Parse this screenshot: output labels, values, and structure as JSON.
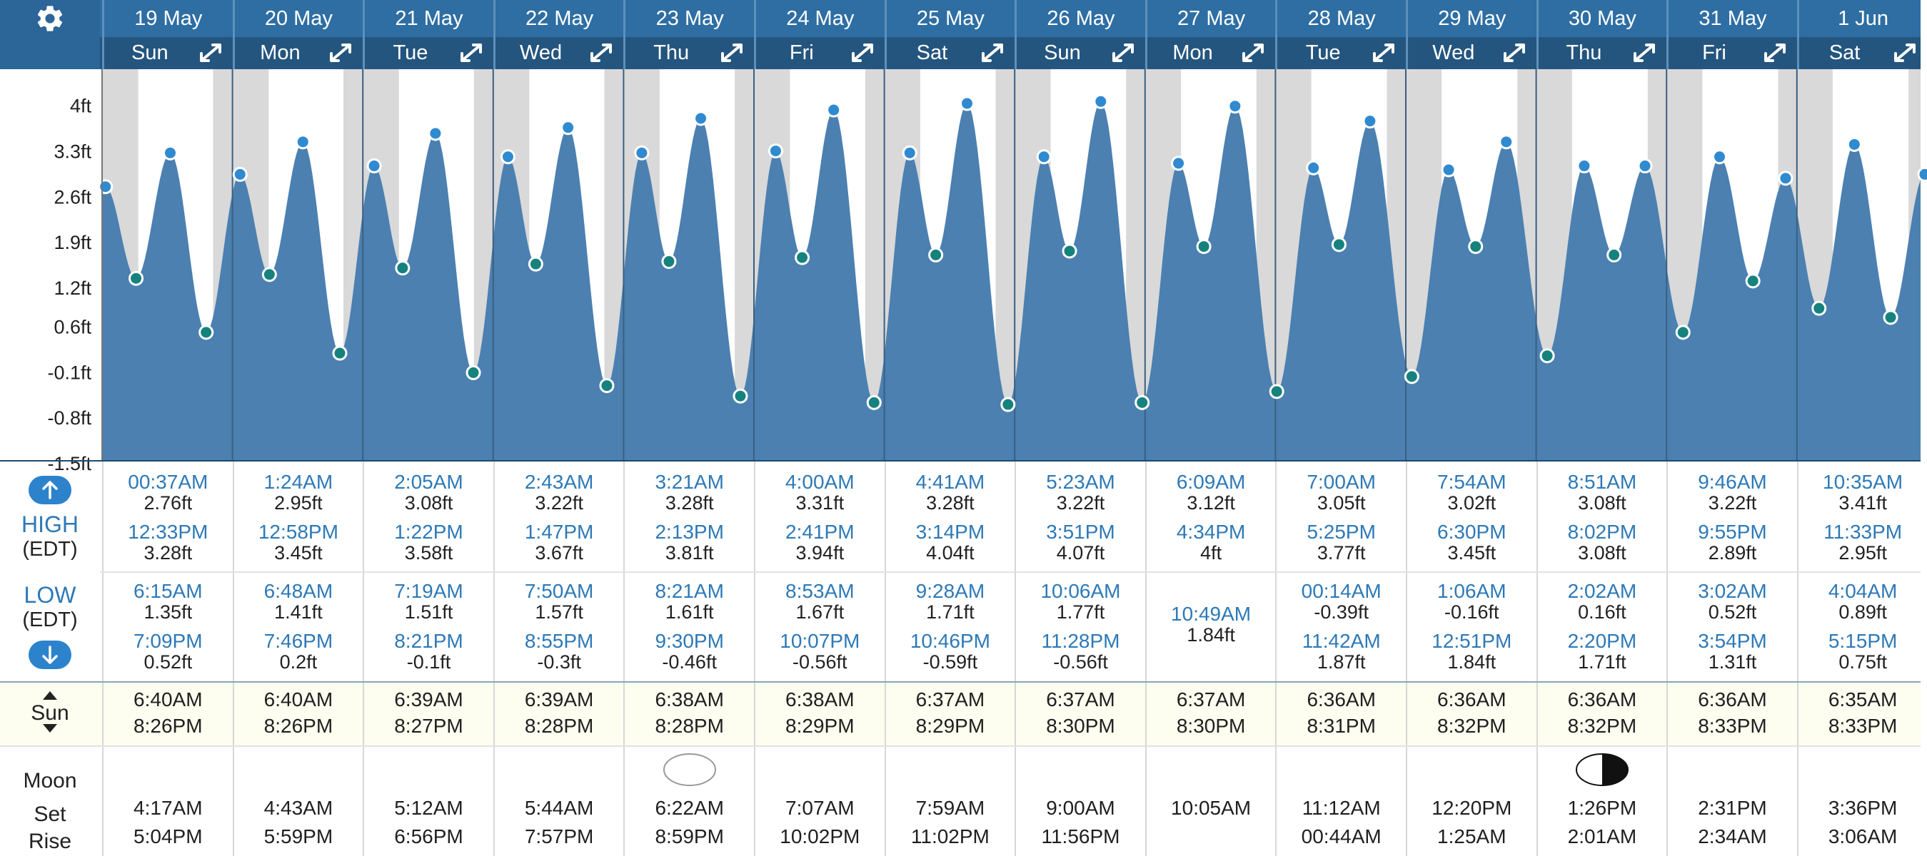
{
  "settings_icon": "gear-icon",
  "expand_icon": "expand-arrows-icon",
  "days": [
    {
      "date": "19 May",
      "weekday": "Sun",
      "high": [
        {
          "time": "00:37AM",
          "height": "2.76ft"
        },
        {
          "time": "12:33PM",
          "height": "3.28ft"
        }
      ],
      "low": [
        {
          "time": "6:15AM",
          "height": "1.35ft"
        },
        {
          "time": "7:09PM",
          "height": "0.52ft"
        }
      ],
      "sunrise": "6:40AM",
      "sunset": "8:26PM",
      "moonset": "4:17AM",
      "moonrise": "5:04PM",
      "moon_phase": ""
    },
    {
      "date": "20 May",
      "weekday": "Mon",
      "high": [
        {
          "time": "1:24AM",
          "height": "2.95ft"
        },
        {
          "time": "12:58PM",
          "height": "3.45ft"
        }
      ],
      "low": [
        {
          "time": "6:48AM",
          "height": "1.41ft"
        },
        {
          "time": "7:46PM",
          "height": "0.2ft"
        }
      ],
      "sunrise": "6:40AM",
      "sunset": "8:26PM",
      "moonset": "4:43AM",
      "moonrise": "5:59PM",
      "moon_phase": ""
    },
    {
      "date": "21 May",
      "weekday": "Tue",
      "high": [
        {
          "time": "2:05AM",
          "height": "3.08ft"
        },
        {
          "time": "1:22PM",
          "height": "3.58ft"
        }
      ],
      "low": [
        {
          "time": "7:19AM",
          "height": "1.51ft"
        },
        {
          "time": "8:21PM",
          "height": "-0.1ft"
        }
      ],
      "sunrise": "6:39AM",
      "sunset": "8:27PM",
      "moonset": "5:12AM",
      "moonrise": "6:56PM",
      "moon_phase": ""
    },
    {
      "date": "22 May",
      "weekday": "Wed",
      "high": [
        {
          "time": "2:43AM",
          "height": "3.22ft"
        },
        {
          "time": "1:47PM",
          "height": "3.67ft"
        }
      ],
      "low": [
        {
          "time": "7:50AM",
          "height": "1.57ft"
        },
        {
          "time": "8:55PM",
          "height": "-0.3ft"
        }
      ],
      "sunrise": "6:39AM",
      "sunset": "8:28PM",
      "moonset": "5:44AM",
      "moonrise": "7:57PM",
      "moon_phase": ""
    },
    {
      "date": "23 May",
      "weekday": "Thu",
      "high": [
        {
          "time": "3:21AM",
          "height": "3.28ft"
        },
        {
          "time": "2:13PM",
          "height": "3.81ft"
        }
      ],
      "low": [
        {
          "time": "8:21AM",
          "height": "1.61ft"
        },
        {
          "time": "9:30PM",
          "height": "-0.46ft"
        }
      ],
      "sunrise": "6:38AM",
      "sunset": "8:28PM",
      "moonset": "6:22AM",
      "moonrise": "8:59PM",
      "moon_phase": "full"
    },
    {
      "date": "24 May",
      "weekday": "Fri",
      "high": [
        {
          "time": "4:00AM",
          "height": "3.31ft"
        },
        {
          "time": "2:41PM",
          "height": "3.94ft"
        }
      ],
      "low": [
        {
          "time": "8:53AM",
          "height": "1.67ft"
        },
        {
          "time": "10:07PM",
          "height": "-0.56ft"
        }
      ],
      "sunrise": "6:38AM",
      "sunset": "8:29PM",
      "moonset": "7:07AM",
      "moonrise": "10:02PM",
      "moon_phase": ""
    },
    {
      "date": "25 May",
      "weekday": "Sat",
      "high": [
        {
          "time": "4:41AM",
          "height": "3.28ft"
        },
        {
          "time": "3:14PM",
          "height": "4.04ft"
        }
      ],
      "low": [
        {
          "time": "9:28AM",
          "height": "1.71ft"
        },
        {
          "time": "10:46PM",
          "height": "-0.59ft"
        }
      ],
      "sunrise": "6:37AM",
      "sunset": "8:29PM",
      "moonset": "7:59AM",
      "moonrise": "11:02PM",
      "moon_phase": ""
    },
    {
      "date": "26 May",
      "weekday": "Sun",
      "high": [
        {
          "time": "5:23AM",
          "height": "3.22ft"
        },
        {
          "time": "3:51PM",
          "height": "4.07ft"
        }
      ],
      "low": [
        {
          "time": "10:06AM",
          "height": "1.77ft"
        },
        {
          "time": "11:28PM",
          "height": "-0.56ft"
        }
      ],
      "sunrise": "6:37AM",
      "sunset": "8:30PM",
      "moonset": "9:00AM",
      "moonrise": "11:56PM",
      "moon_phase": ""
    },
    {
      "date": "27 May",
      "weekday": "Mon",
      "high": [
        {
          "time": "6:09AM",
          "height": "3.12ft"
        },
        {
          "time": "4:34PM",
          "height": "4ft"
        }
      ],
      "low": [
        {
          "time": "10:49AM",
          "height": "1.84ft"
        }
      ],
      "sunrise": "6:37AM",
      "sunset": "8:30PM",
      "moonset": "10:05AM",
      "moonrise": "",
      "moon_phase": ""
    },
    {
      "date": "28 May",
      "weekday": "Tue",
      "high": [
        {
          "time": "7:00AM",
          "height": "3.05ft"
        },
        {
          "time": "5:25PM",
          "height": "3.77ft"
        }
      ],
      "low": [
        {
          "time": "00:14AM",
          "height": "-0.39ft"
        },
        {
          "time": "11:42AM",
          "height": "1.87ft"
        }
      ],
      "sunrise": "6:36AM",
      "sunset": "8:31PM",
      "moonset": "11:12AM",
      "moonrise": "00:44AM",
      "moon_phase": ""
    },
    {
      "date": "29 May",
      "weekday": "Wed",
      "high": [
        {
          "time": "7:54AM",
          "height": "3.02ft"
        },
        {
          "time": "6:30PM",
          "height": "3.45ft"
        }
      ],
      "low": [
        {
          "time": "1:06AM",
          "height": "-0.16ft"
        },
        {
          "time": "12:51PM",
          "height": "1.84ft"
        }
      ],
      "sunrise": "6:36AM",
      "sunset": "8:32PM",
      "moonset": "12:20PM",
      "moonrise": "1:25AM",
      "moon_phase": ""
    },
    {
      "date": "30 May",
      "weekday": "Thu",
      "high": [
        {
          "time": "8:51AM",
          "height": "3.08ft"
        },
        {
          "time": "8:02PM",
          "height": "3.08ft"
        }
      ],
      "low": [
        {
          "time": "2:02AM",
          "height": "0.16ft"
        },
        {
          "time": "2:20PM",
          "height": "1.71ft"
        }
      ],
      "sunrise": "6:36AM",
      "sunset": "8:32PM",
      "moonset": "1:26PM",
      "moonrise": "2:01AM",
      "moon_phase": "last-quarter"
    },
    {
      "date": "31 May",
      "weekday": "Fri",
      "high": [
        {
          "time": "9:46AM",
          "height": "3.22ft"
        },
        {
          "time": "9:55PM",
          "height": "2.89ft"
        }
      ],
      "low": [
        {
          "time": "3:02AM",
          "height": "0.52ft"
        },
        {
          "time": "3:54PM",
          "height": "1.31ft"
        }
      ],
      "sunrise": "6:36AM",
      "sunset": "8:33PM",
      "moonset": "2:31PM",
      "moonrise": "2:34AM",
      "moon_phase": ""
    },
    {
      "date": "1 Jun",
      "weekday": "Sat",
      "high": [
        {
          "time": "10:35AM",
          "height": "3.41ft"
        },
        {
          "time": "11:33PM",
          "height": "2.95ft"
        }
      ],
      "low": [
        {
          "time": "4:04AM",
          "height": "0.89ft"
        },
        {
          "time": "5:15PM",
          "height": "0.75ft"
        }
      ],
      "sunrise": "6:35AM",
      "sunset": "8:33PM",
      "moonset": "3:36PM",
      "moonrise": "3:06AM",
      "moon_phase": ""
    }
  ],
  "labels": {
    "high": "HIGH",
    "high_tz": "(EDT)",
    "low": "LOW",
    "low_tz": "(EDT)",
    "sun": "Sun",
    "moon": "Moon",
    "set": "Set",
    "rise": "Rise"
  },
  "chart_data": {
    "type": "area",
    "y_unit": "ft",
    "yticks": [
      "4ft",
      "3.3ft",
      "2.6ft",
      "1.9ft",
      "1.2ft",
      "0.6ft",
      "-0.1ft",
      "-0.8ft",
      "-1.5ft"
    ],
    "ytick_values": [
      4,
      3.3,
      2.6,
      1.9,
      1.2,
      0.6,
      -0.1,
      -0.8,
      -1.5
    ],
    "ylim": [
      -1.5,
      4.6
    ],
    "x_start": "19 May 00:00",
    "x_end": "1 Jun 24:00",
    "night_shading": true,
    "colors": {
      "area": "#4b80b1",
      "night": "#d9d9d9",
      "high_marker": "#2f8ad0",
      "low_marker": "#16827e"
    },
    "series": [
      {
        "x": "18 May 11:50PM",
        "y": 2.6
      },
      {
        "x": "19 May 00:37AM",
        "y": 2.76,
        "kind": "high"
      },
      {
        "x": "19 May 6:15AM",
        "y": 1.35,
        "kind": "low"
      },
      {
        "x": "19 May 12:33PM",
        "y": 3.28,
        "kind": "high"
      },
      {
        "x": "19 May 7:09PM",
        "y": 0.52,
        "kind": "low"
      },
      {
        "x": "20 May 1:24AM",
        "y": 2.95,
        "kind": "high"
      },
      {
        "x": "20 May 6:48AM",
        "y": 1.41,
        "kind": "low"
      },
      {
        "x": "20 May 12:58PM",
        "y": 3.45,
        "kind": "high"
      },
      {
        "x": "20 May 7:46PM",
        "y": 0.2,
        "kind": "low"
      },
      {
        "x": "21 May 2:05AM",
        "y": 3.08,
        "kind": "high"
      },
      {
        "x": "21 May 7:19AM",
        "y": 1.51,
        "kind": "low"
      },
      {
        "x": "21 May 1:22PM",
        "y": 3.58,
        "kind": "high"
      },
      {
        "x": "21 May 8:21PM",
        "y": -0.1,
        "kind": "low"
      },
      {
        "x": "22 May 2:43AM",
        "y": 3.22,
        "kind": "high"
      },
      {
        "x": "22 May 7:50AM",
        "y": 1.57,
        "kind": "low"
      },
      {
        "x": "22 May 1:47PM",
        "y": 3.67,
        "kind": "high"
      },
      {
        "x": "22 May 8:55PM",
        "y": -0.3,
        "kind": "low"
      },
      {
        "x": "23 May 3:21AM",
        "y": 3.28,
        "kind": "high"
      },
      {
        "x": "23 May 8:21AM",
        "y": 1.61,
        "kind": "low"
      },
      {
        "x": "23 May 2:13PM",
        "y": 3.81,
        "kind": "high"
      },
      {
        "x": "23 May 9:30PM",
        "y": -0.46,
        "kind": "low"
      },
      {
        "x": "24 May 4:00AM",
        "y": 3.31,
        "kind": "high"
      },
      {
        "x": "24 May 8:53AM",
        "y": 1.67,
        "kind": "low"
      },
      {
        "x": "24 May 2:41PM",
        "y": 3.94,
        "kind": "high"
      },
      {
        "x": "24 May 10:07PM",
        "y": -0.56,
        "kind": "low"
      },
      {
        "x": "25 May 4:41AM",
        "y": 3.28,
        "kind": "high"
      },
      {
        "x": "25 May 9:28AM",
        "y": 1.71,
        "kind": "low"
      },
      {
        "x": "25 May 3:14PM",
        "y": 4.04,
        "kind": "high"
      },
      {
        "x": "25 May 10:46PM",
        "y": -0.59,
        "kind": "low"
      },
      {
        "x": "26 May 5:23AM",
        "y": 3.22,
        "kind": "high"
      },
      {
        "x": "26 May 10:06AM",
        "y": 1.77,
        "kind": "low"
      },
      {
        "x": "26 May 3:51PM",
        "y": 4.07,
        "kind": "high"
      },
      {
        "x": "26 May 11:28PM",
        "y": -0.56,
        "kind": "low"
      },
      {
        "x": "27 May 6:09AM",
        "y": 3.12,
        "kind": "high"
      },
      {
        "x": "27 May 10:49AM",
        "y": 1.84,
        "kind": "low"
      },
      {
        "x": "27 May 4:34PM",
        "y": 4.0,
        "kind": "high"
      },
      {
        "x": "28 May 00:14AM",
        "y": -0.39,
        "kind": "low"
      },
      {
        "x": "28 May 7:00AM",
        "y": 3.05,
        "kind": "high"
      },
      {
        "x": "28 May 11:42AM",
        "y": 1.87,
        "kind": "low"
      },
      {
        "x": "28 May 5:25PM",
        "y": 3.77,
        "kind": "high"
      },
      {
        "x": "29 May 1:06AM",
        "y": -0.16,
        "kind": "low"
      },
      {
        "x": "29 May 7:54AM",
        "y": 3.02,
        "kind": "high"
      },
      {
        "x": "29 May 12:51PM",
        "y": 1.84,
        "kind": "low"
      },
      {
        "x": "29 May 6:30PM",
        "y": 3.45,
        "kind": "high"
      },
      {
        "x": "30 May 2:02AM",
        "y": 0.16,
        "kind": "low"
      },
      {
        "x": "30 May 8:51AM",
        "y": 3.08,
        "kind": "high"
      },
      {
        "x": "30 May 2:20PM",
        "y": 1.71,
        "kind": "low"
      },
      {
        "x": "30 May 8:02PM",
        "y": 3.08,
        "kind": "high"
      },
      {
        "x": "31 May 3:02AM",
        "y": 0.52,
        "kind": "low"
      },
      {
        "x": "31 May 9:46AM",
        "y": 3.22,
        "kind": "high"
      },
      {
        "x": "31 May 3:54PM",
        "y": 1.31,
        "kind": "low"
      },
      {
        "x": "31 May 9:55PM",
        "y": 2.89,
        "kind": "high"
      },
      {
        "x": "1 Jun 4:04AM",
        "y": 0.89,
        "kind": "low"
      },
      {
        "x": "1 Jun 10:35AM",
        "y": 3.41,
        "kind": "high"
      },
      {
        "x": "1 Jun 5:15PM",
        "y": 0.75,
        "kind": "low"
      },
      {
        "x": "1 Jun 11:33PM",
        "y": 2.95,
        "kind": "high"
      }
    ]
  }
}
